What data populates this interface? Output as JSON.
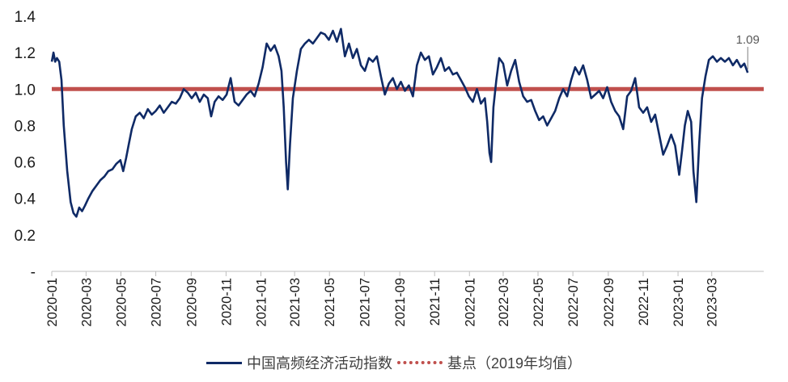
{
  "chart_data": {
    "type": "line",
    "ylim": [
      0,
      1.4
    ],
    "ytick_labels": [
      "-",
      "0.2",
      "0.4",
      "0.6",
      "0.8",
      "1.0",
      "1.2",
      "1.4"
    ],
    "ytick_values": [
      0,
      0.2,
      0.4,
      0.6,
      0.8,
      1.0,
      1.2,
      1.4
    ],
    "x_tick_labels": [
      "2020-01",
      "2020-03",
      "2020-05",
      "2020-07",
      "2020-09",
      "2020-11",
      "2021-01",
      "2021-03",
      "2021-05",
      "2021-07",
      "2021-09",
      "2021-11",
      "2022-01",
      "2022-03",
      "2022-05",
      "2022-07",
      "2022-09",
      "2022-11",
      "2023-01",
      "2023-03"
    ],
    "xlim_months": [
      "2020-01",
      "2023-05"
    ],
    "grid": false,
    "legend_position": "bottom",
    "end_label": "1.09",
    "series": [
      {
        "name": "中国高频经济活动指数",
        "color": "#0f2a66",
        "style": "solid",
        "points": [
          [
            "2020-01-01",
            1.15
          ],
          [
            "2020-01-04",
            1.2
          ],
          [
            "2020-01-07",
            1.15
          ],
          [
            "2020-01-10",
            1.17
          ],
          [
            "2020-01-14",
            1.15
          ],
          [
            "2020-01-18",
            1.05
          ],
          [
            "2020-01-22",
            0.8
          ],
          [
            "2020-01-28",
            0.55
          ],
          [
            "2020-02-03",
            0.38
          ],
          [
            "2020-02-08",
            0.32
          ],
          [
            "2020-02-13",
            0.3
          ],
          [
            "2020-02-18",
            0.35
          ],
          [
            "2020-02-23",
            0.33
          ],
          [
            "2020-02-28",
            0.36
          ],
          [
            "2020-03-05",
            0.4
          ],
          [
            "2020-03-12",
            0.44
          ],
          [
            "2020-03-19",
            0.47
          ],
          [
            "2020-03-26",
            0.5
          ],
          [
            "2020-04-02",
            0.52
          ],
          [
            "2020-04-09",
            0.55
          ],
          [
            "2020-04-16",
            0.56
          ],
          [
            "2020-04-23",
            0.59
          ],
          [
            "2020-04-30",
            0.61
          ],
          [
            "2020-05-05",
            0.55
          ],
          [
            "2020-05-10",
            0.62
          ],
          [
            "2020-05-15",
            0.7
          ],
          [
            "2020-05-20",
            0.78
          ],
          [
            "2020-05-27",
            0.85
          ],
          [
            "2020-06-03",
            0.87
          ],
          [
            "2020-06-10",
            0.84
          ],
          [
            "2020-06-17",
            0.89
          ],
          [
            "2020-06-24",
            0.86
          ],
          [
            "2020-07-01",
            0.88
          ],
          [
            "2020-07-08",
            0.91
          ],
          [
            "2020-07-15",
            0.87
          ],
          [
            "2020-07-22",
            0.9
          ],
          [
            "2020-07-29",
            0.93
          ],
          [
            "2020-08-05",
            0.92
          ],
          [
            "2020-08-12",
            0.95
          ],
          [
            "2020-08-19",
            1.0
          ],
          [
            "2020-08-26",
            0.98
          ],
          [
            "2020-09-02",
            0.95
          ],
          [
            "2020-09-09",
            0.98
          ],
          [
            "2020-09-16",
            0.93
          ],
          [
            "2020-09-23",
            0.97
          ],
          [
            "2020-09-30",
            0.95
          ],
          [
            "2020-10-06",
            0.85
          ],
          [
            "2020-10-12",
            0.93
          ],
          [
            "2020-10-19",
            0.96
          ],
          [
            "2020-10-26",
            0.94
          ],
          [
            "2020-11-02",
            0.97
          ],
          [
            "2020-11-09",
            1.06
          ],
          [
            "2020-11-16",
            0.93
          ],
          [
            "2020-11-23",
            0.91
          ],
          [
            "2020-11-30",
            0.94
          ],
          [
            "2020-12-07",
            0.97
          ],
          [
            "2020-12-14",
            0.99
          ],
          [
            "2020-12-21",
            0.96
          ],
          [
            "2020-12-28",
            1.03
          ],
          [
            "2021-01-04",
            1.12
          ],
          [
            "2021-01-11",
            1.25
          ],
          [
            "2021-01-18",
            1.21
          ],
          [
            "2021-01-25",
            1.24
          ],
          [
            "2021-02-01",
            1.18
          ],
          [
            "2021-02-06",
            1.1
          ],
          [
            "2021-02-10",
            0.9
          ],
          [
            "2021-02-14",
            0.6
          ],
          [
            "2021-02-17",
            0.45
          ],
          [
            "2021-02-21",
            0.7
          ],
          [
            "2021-02-26",
            0.95
          ],
          [
            "2021-03-05",
            1.1
          ],
          [
            "2021-03-12",
            1.22
          ],
          [
            "2021-03-19",
            1.25
          ],
          [
            "2021-03-26",
            1.27
          ],
          [
            "2021-04-02",
            1.25
          ],
          [
            "2021-04-09",
            1.28
          ],
          [
            "2021-04-16",
            1.31
          ],
          [
            "2021-04-23",
            1.3
          ],
          [
            "2021-04-30",
            1.27
          ],
          [
            "2021-05-07",
            1.32
          ],
          [
            "2021-05-14",
            1.26
          ],
          [
            "2021-05-21",
            1.33
          ],
          [
            "2021-05-28",
            1.18
          ],
          [
            "2021-06-04",
            1.25
          ],
          [
            "2021-06-11",
            1.17
          ],
          [
            "2021-06-18",
            1.22
          ],
          [
            "2021-06-25",
            1.13
          ],
          [
            "2021-07-02",
            1.1
          ],
          [
            "2021-07-09",
            1.17
          ],
          [
            "2021-07-16",
            1.15
          ],
          [
            "2021-07-23",
            1.18
          ],
          [
            "2021-07-30",
            1.07
          ],
          [
            "2021-08-06",
            0.97
          ],
          [
            "2021-08-13",
            1.03
          ],
          [
            "2021-08-20",
            1.06
          ],
          [
            "2021-08-27",
            1.0
          ],
          [
            "2021-09-03",
            1.04
          ],
          [
            "2021-09-10",
            0.99
          ],
          [
            "2021-09-17",
            1.02
          ],
          [
            "2021-09-24",
            0.96
          ],
          [
            "2021-10-01",
            1.13
          ],
          [
            "2021-10-08",
            1.2
          ],
          [
            "2021-10-15",
            1.16
          ],
          [
            "2021-10-22",
            1.18
          ],
          [
            "2021-10-29",
            1.08
          ],
          [
            "2021-11-05",
            1.12
          ],
          [
            "2021-11-12",
            1.17
          ],
          [
            "2021-11-19",
            1.1
          ],
          [
            "2021-11-26",
            1.12
          ],
          [
            "2021-12-03",
            1.08
          ],
          [
            "2021-12-10",
            1.09
          ],
          [
            "2021-12-17",
            1.05
          ],
          [
            "2021-12-24",
            1.01
          ],
          [
            "2021-12-31",
            0.96
          ],
          [
            "2022-01-07",
            0.93
          ],
          [
            "2022-01-14",
            1.0
          ],
          [
            "2022-01-21",
            0.92
          ],
          [
            "2022-01-28",
            0.95
          ],
          [
            "2022-02-01",
            0.82
          ],
          [
            "2022-02-05",
            0.65
          ],
          [
            "2022-02-08",
            0.6
          ],
          [
            "2022-02-12",
            0.9
          ],
          [
            "2022-02-17",
            1.05
          ],
          [
            "2022-02-22",
            1.17
          ],
          [
            "2022-03-01",
            1.14
          ],
          [
            "2022-03-08",
            1.02
          ],
          [
            "2022-03-15",
            1.1
          ],
          [
            "2022-03-22",
            1.16
          ],
          [
            "2022-03-29",
            1.04
          ],
          [
            "2022-04-05",
            0.96
          ],
          [
            "2022-04-12",
            0.93
          ],
          [
            "2022-04-19",
            0.94
          ],
          [
            "2022-04-26",
            0.88
          ],
          [
            "2022-05-03",
            0.83
          ],
          [
            "2022-05-10",
            0.85
          ],
          [
            "2022-05-17",
            0.8
          ],
          [
            "2022-05-24",
            0.84
          ],
          [
            "2022-05-31",
            0.88
          ],
          [
            "2022-06-07",
            0.95
          ],
          [
            "2022-06-14",
            1.0
          ],
          [
            "2022-06-21",
            0.96
          ],
          [
            "2022-06-28",
            1.05
          ],
          [
            "2022-07-05",
            1.12
          ],
          [
            "2022-07-12",
            1.08
          ],
          [
            "2022-07-19",
            1.13
          ],
          [
            "2022-07-26",
            1.05
          ],
          [
            "2022-08-02",
            0.95
          ],
          [
            "2022-08-09",
            0.97
          ],
          [
            "2022-08-16",
            0.99
          ],
          [
            "2022-08-23",
            0.95
          ],
          [
            "2022-08-30",
            1.01
          ],
          [
            "2022-09-06",
            0.93
          ],
          [
            "2022-09-13",
            0.88
          ],
          [
            "2022-09-20",
            0.85
          ],
          [
            "2022-09-27",
            0.78
          ],
          [
            "2022-10-04",
            0.96
          ],
          [
            "2022-10-11",
            0.99
          ],
          [
            "2022-10-18",
            1.06
          ],
          [
            "2022-10-25",
            0.9
          ],
          [
            "2022-11-01",
            0.87
          ],
          [
            "2022-11-08",
            0.9
          ],
          [
            "2022-11-15",
            0.82
          ],
          [
            "2022-11-22",
            0.86
          ],
          [
            "2022-11-29",
            0.75
          ],
          [
            "2022-12-06",
            0.64
          ],
          [
            "2022-12-13",
            0.69
          ],
          [
            "2022-12-20",
            0.75
          ],
          [
            "2022-12-27",
            0.69
          ],
          [
            "2023-01-03",
            0.53
          ],
          [
            "2023-01-08",
            0.66
          ],
          [
            "2023-01-13",
            0.8
          ],
          [
            "2023-01-18",
            0.88
          ],
          [
            "2023-01-24",
            0.82
          ],
          [
            "2023-01-28",
            0.55
          ],
          [
            "2023-02-02",
            0.38
          ],
          [
            "2023-02-07",
            0.7
          ],
          [
            "2023-02-12",
            0.95
          ],
          [
            "2023-02-18",
            1.07
          ],
          [
            "2023-02-24",
            1.16
          ],
          [
            "2023-03-03",
            1.18
          ],
          [
            "2023-03-10",
            1.15
          ],
          [
            "2023-03-17",
            1.17
          ],
          [
            "2023-03-24",
            1.15
          ],
          [
            "2023-03-31",
            1.17
          ],
          [
            "2023-04-07",
            1.13
          ],
          [
            "2023-04-14",
            1.16
          ],
          [
            "2023-04-21",
            1.12
          ],
          [
            "2023-04-27",
            1.14
          ],
          [
            "2023-05-03",
            1.09
          ]
        ]
      },
      {
        "name": "基点（2019年均值）",
        "color": "#c0504d",
        "style": "dotted",
        "constant": 1.0
      }
    ]
  }
}
